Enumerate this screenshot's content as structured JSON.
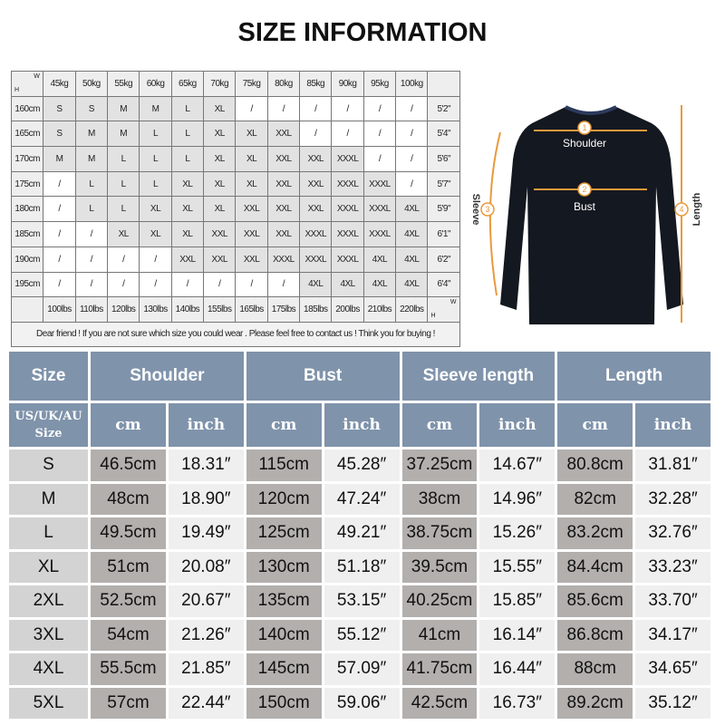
{
  "title": "SIZE INFORMATION",
  "reference_table": {
    "corner_h": "H",
    "corner_w": "W",
    "weights": [
      "45kg",
      "50kg",
      "55kg",
      "60kg",
      "65kg",
      "70kg",
      "75kg",
      "80kg",
      "85kg",
      "90kg",
      "95kg",
      "100kg"
    ],
    "pounds": [
      "100lbs",
      "110lbs",
      "120lbs",
      "130lbs",
      "140lbs",
      "155lbs",
      "165lbs",
      "175lbs",
      "185lbs",
      "200lbs",
      "210lbs",
      "220lbs"
    ],
    "rows": [
      {
        "height": "160cm",
        "feet": "5'2\"",
        "sizes": [
          "S",
          "S",
          "M",
          "M",
          "L",
          "XL",
          "/",
          "/",
          "/",
          "/",
          "/",
          "/"
        ]
      },
      {
        "height": "165cm",
        "feet": "5'4\"",
        "sizes": [
          "S",
          "M",
          "M",
          "L",
          "L",
          "XL",
          "XL",
          "XXL",
          "/",
          "/",
          "/",
          "/"
        ]
      },
      {
        "height": "170cm",
        "feet": "5'6\"",
        "sizes": [
          "M",
          "M",
          "L",
          "L",
          "L",
          "XL",
          "XL",
          "XXL",
          "XXL",
          "XXXL",
          "/",
          "/"
        ]
      },
      {
        "height": "175cm",
        "feet": "5'7\"",
        "sizes": [
          "/",
          "L",
          "L",
          "L",
          "XL",
          "XL",
          "XL",
          "XXL",
          "XXL",
          "XXXL",
          "XXXL",
          "/"
        ]
      },
      {
        "height": "180cm",
        "feet": "5'9\"",
        "sizes": [
          "/",
          "L",
          "L",
          "XL",
          "XL",
          "XL",
          "XXL",
          "XXL",
          "XXL",
          "XXXL",
          "XXXL",
          "4XL"
        ]
      },
      {
        "height": "185cm",
        "feet": "6'1\"",
        "sizes": [
          "/",
          "/",
          "XL",
          "XL",
          "XL",
          "XXL",
          "XXL",
          "XXL",
          "XXXL",
          "XXXL",
          "XXXL",
          "4XL"
        ]
      },
      {
        "height": "190cm",
        "feet": "6'2\"",
        "sizes": [
          "/",
          "/",
          "/",
          "/",
          "XXL",
          "XXL",
          "XXL",
          "XXXL",
          "XXXL",
          "XXXL",
          "4XL",
          "4XL"
        ]
      },
      {
        "height": "195cm",
        "feet": "6'4\"",
        "sizes": [
          "/",
          "/",
          "/",
          "/",
          "/",
          "/",
          "/",
          "/",
          "4XL",
          "4XL",
          "4XL",
          "4XL"
        ]
      }
    ],
    "note": "Dear friend ! If you are not sure which size you could wear . Please feel free to contact us ! Think you for buying !"
  },
  "garment": {
    "labels": [
      {
        "num": "1",
        "text": "Shoulder"
      },
      {
        "num": "2",
        "text": "Bust"
      },
      {
        "num": "3",
        "text": "Sleeve"
      },
      {
        "num": "4",
        "text": "Length"
      }
    ],
    "accent": "#e89a3c"
  },
  "spec_table": {
    "header": [
      "Size",
      "Shoulder",
      "Bust",
      "Sleeve length",
      "Length"
    ],
    "size_sub": "US/UK/AU Size",
    "cm": "cm",
    "inch": "inch",
    "colors": {
      "header": "#7f93ab",
      "cm_cell": "#b2afad",
      "inch_cell": "#efefef",
      "size_cell": "#d3d3d3"
    },
    "rows": [
      [
        "S",
        "46.5cm",
        "18.31″",
        "115cm",
        "45.28″",
        "37.25cm",
        "14.67″",
        "80.8cm",
        "31.81″"
      ],
      [
        "M",
        "48cm",
        "18.90″",
        "120cm",
        "47.24″",
        "38cm",
        "14.96″",
        "82cm",
        "32.28″"
      ],
      [
        "L",
        "49.5cm",
        "19.49″",
        "125cm",
        "49.21″",
        "38.75cm",
        "15.26″",
        "83.2cm",
        "32.76″"
      ],
      [
        "XL",
        "51cm",
        "20.08″",
        "130cm",
        "51.18″",
        "39.5cm",
        "15.55″",
        "84.4cm",
        "33.23″"
      ],
      [
        "2XL",
        "52.5cm",
        "20.67″",
        "135cm",
        "53.15″",
        "40.25cm",
        "15.85″",
        "85.6cm",
        "33.70″"
      ],
      [
        "3XL",
        "54cm",
        "21.26″",
        "140cm",
        "55.12″",
        "41cm",
        "16.14″",
        "86.8cm",
        "34.17″"
      ],
      [
        "4XL",
        "55.5cm",
        "21.85″",
        "145cm",
        "57.09″",
        "41.75cm",
        "16.44″",
        "88cm",
        "34.65″"
      ],
      [
        "5XL",
        "57cm",
        "22.44″",
        "150cm",
        "59.06″",
        "42.5cm",
        "16.73″",
        "89.2cm",
        "35.12″"
      ]
    ]
  }
}
